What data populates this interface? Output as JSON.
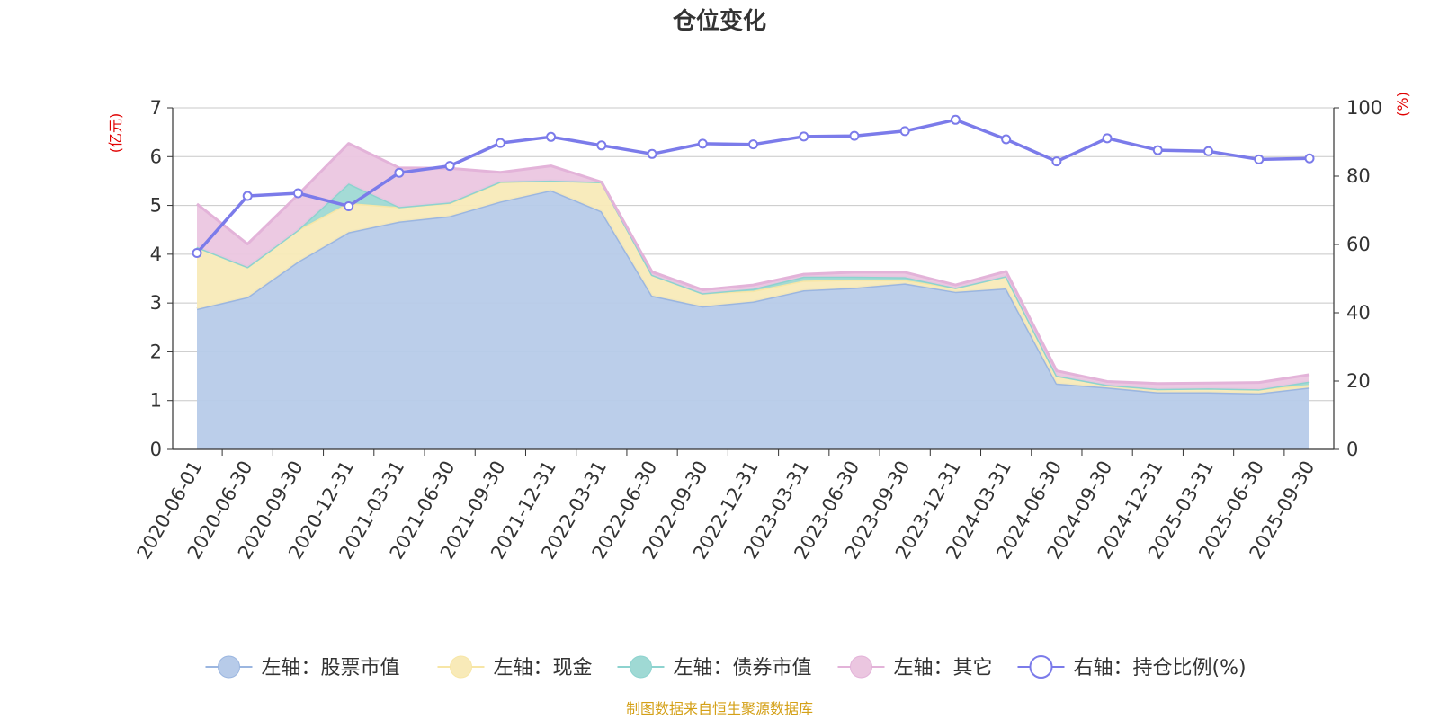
{
  "chart_data": {
    "type": "area",
    "title": "仓位变化",
    "source_note": "制图数据来自恒生聚源数据库",
    "left_axis_unit": "(亿元)",
    "right_axis_unit": "(%)",
    "left_ylim": [
      0,
      7
    ],
    "left_ticks": [
      "0",
      "1",
      "2",
      "3",
      "4",
      "5",
      "6",
      "7"
    ],
    "right_ylim": [
      0,
      100
    ],
    "right_ticks": [
      "0",
      "20",
      "40",
      "60",
      "80",
      "100"
    ],
    "categories": [
      "2020-06-01",
      "2020-06-30",
      "2020-09-30",
      "2020-12-31",
      "2021-03-31",
      "2021-06-30",
      "2021-09-30",
      "2021-12-31",
      "2022-03-31",
      "2022-06-30",
      "2022-09-30",
      "2022-12-31",
      "2023-03-31",
      "2023-06-30",
      "2023-09-30",
      "2023-12-31",
      "2024-03-31",
      "2024-06-30",
      "2024-09-30",
      "2024-12-31",
      "2025-03-31",
      "2025-06-30",
      "2025-09-30"
    ],
    "stacked_series": [
      {
        "name": "左轴：股票市值",
        "axis": "left",
        "color": "#9bb6e0",
        "fill": "#b7cbe9",
        "values": [
          2.88,
          3.12,
          3.85,
          4.45,
          4.67,
          4.78,
          5.08,
          5.31,
          4.88,
          3.15,
          2.93,
          3.03,
          3.26,
          3.31,
          3.4,
          3.23,
          3.3,
          1.35,
          1.27,
          1.17,
          1.17,
          1.15,
          1.27
        ]
      },
      {
        "name": "左轴：现金",
        "axis": "left",
        "color": "#f7e6a6",
        "fill": "#f8eab8",
        "values": [
          1.27,
          0.62,
          0.65,
          0.6,
          0.3,
          0.27,
          0.4,
          0.2,
          0.6,
          0.43,
          0.27,
          0.22,
          0.2,
          0.17,
          0.07,
          0.08,
          0.25,
          0.16,
          0.05,
          0.07,
          0.08,
          0.08,
          0.05
        ]
      },
      {
        "name": "左轴：债券市值",
        "axis": "left",
        "color": "#8dd3cf",
        "fill": "#9fd9d4",
        "values": [
          0,
          0,
          0,
          0.4,
          0,
          0.01,
          0.01,
          0,
          0,
          0,
          0,
          0.04,
          0.08,
          0.06,
          0.06,
          0,
          0,
          0,
          0,
          0,
          0,
          0,
          0.07
        ]
      },
      {
        "name": "左轴：其它",
        "axis": "left",
        "color": "#e3b3d9",
        "fill": "#ebc6e0",
        "values": [
          0.88,
          0.47,
          0.72,
          0.82,
          0.8,
          0.7,
          0.19,
          0.3,
          0,
          0.06,
          0.07,
          0.08,
          0.05,
          0.09,
          0.1,
          0.06,
          0.1,
          0.1,
          0.07,
          0.11,
          0.11,
          0.14,
          0.14
        ]
      }
    ],
    "line_series": {
      "name": "右轴：持仓比例(%)",
      "axis": "right",
      "color": "#7b7bea",
      "values": [
        57.5,
        74.2,
        75.0,
        71.2,
        81.0,
        83.0,
        89.7,
        91.5,
        89.0,
        86.5,
        89.5,
        89.3,
        91.6,
        91.8,
        93.2,
        96.5,
        90.8,
        84.3,
        91.1,
        87.6,
        87.3,
        84.9,
        85.2
      ]
    }
  }
}
